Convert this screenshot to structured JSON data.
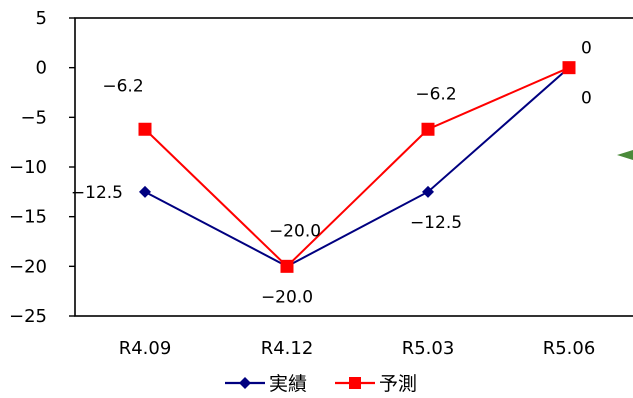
{
  "chart_data": {
    "type": "line",
    "categories": [
      "R4.09",
      "R4.12",
      "R5.03",
      "R5.06"
    ],
    "ylim": [
      -25,
      5
    ],
    "yticks": [
      5,
      0,
      -5,
      -10,
      -15,
      -20,
      -25
    ],
    "ytick_labels": [
      "5",
      "0",
      "−5",
      "−10",
      "−15",
      "−20",
      "−25"
    ],
    "grid": false,
    "legend_position": "bottom",
    "series": [
      {
        "name": "実績",
        "values": [
          -12.5,
          -20.0,
          -12.5,
          0
        ],
        "labels": [
          "−12.5",
          "−20.0",
          "−12.5",
          "0"
        ],
        "label_side": [
          "left",
          "below",
          "below",
          "below"
        ],
        "color": "#000080",
        "marker": "diamond"
      },
      {
        "name": "予測",
        "values": [
          -6.2,
          -20.0,
          -6.2,
          0
        ],
        "labels": [
          "−6.2",
          "−20.0",
          "−6.2",
          "0"
        ],
        "label_side": [
          "above",
          "above",
          "above",
          "above"
        ],
        "color": "#ff0000",
        "marker": "square"
      }
    ]
  }
}
